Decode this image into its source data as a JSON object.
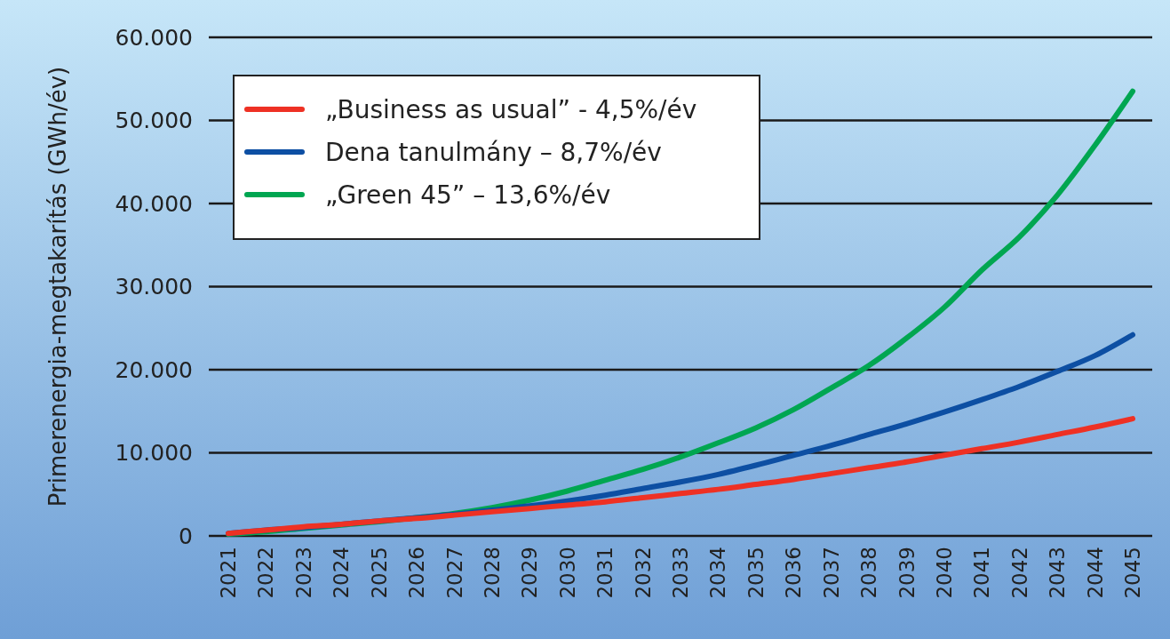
{
  "chart_data": {
    "type": "line",
    "ylabel": "Primerenergia-megtakarítás (GWh/év)",
    "categories": [
      "2021",
      "2022",
      "2023",
      "2024",
      "2025",
      "2026",
      "2027",
      "2028",
      "2029",
      "2030",
      "2031",
      "2032",
      "2033",
      "2034",
      "2035",
      "2036",
      "2037",
      "2038",
      "2039",
      "2040",
      "2041",
      "2042",
      "2043",
      "2044",
      "2045"
    ],
    "series": [
      {
        "name": "„Business as usual” -  4,5%/év",
        "color": "#ee3124",
        "values": [
          300,
          700,
          1100,
          1400,
          1800,
          2100,
          2500,
          2900,
          3300,
          3700,
          4100,
          4600,
          5100,
          5600,
          6200,
          6800,
          7500,
          8200,
          8900,
          9700,
          10500,
          11300,
          12200,
          13100,
          14100
        ]
      },
      {
        "name": "Dena tanulmány – 8,7%/év",
        "color": "#0d4fa3",
        "values": [
          300,
          700,
          1000,
          1400,
          1800,
          2200,
          2600,
          3100,
          3600,
          4200,
          4900,
          5700,
          6500,
          7400,
          8500,
          9700,
          10900,
          12200,
          13500,
          14900,
          16400,
          18000,
          19800,
          21700,
          24200
        ]
      },
      {
        "name": "„Green 45” – 13,6%/év",
        "color": "#00a651",
        "values": [
          200,
          500,
          900,
          1300,
          1700,
          2200,
          2700,
          3400,
          4300,
          5400,
          6700,
          8000,
          9500,
          11200,
          13000,
          15200,
          17800,
          20500,
          23800,
          27500,
          32000,
          36000,
          41000,
          47000,
          53500
        ]
      }
    ],
    "ylim": [
      0,
      60000
    ],
    "yticks": [
      {
        "value": 0,
        "label": "0"
      },
      {
        "value": 10000,
        "label": "10.000"
      },
      {
        "value": 20000,
        "label": "20.000"
      },
      {
        "value": 30000,
        "label": "30.000"
      },
      {
        "value": 40000,
        "label": "40.000"
      },
      {
        "value": 50000,
        "label": "50.000"
      },
      {
        "value": 60000,
        "label": "60.000"
      }
    ],
    "grid": "y",
    "legend": "top left",
    "marker": "none",
    "line_style": "solid"
  }
}
